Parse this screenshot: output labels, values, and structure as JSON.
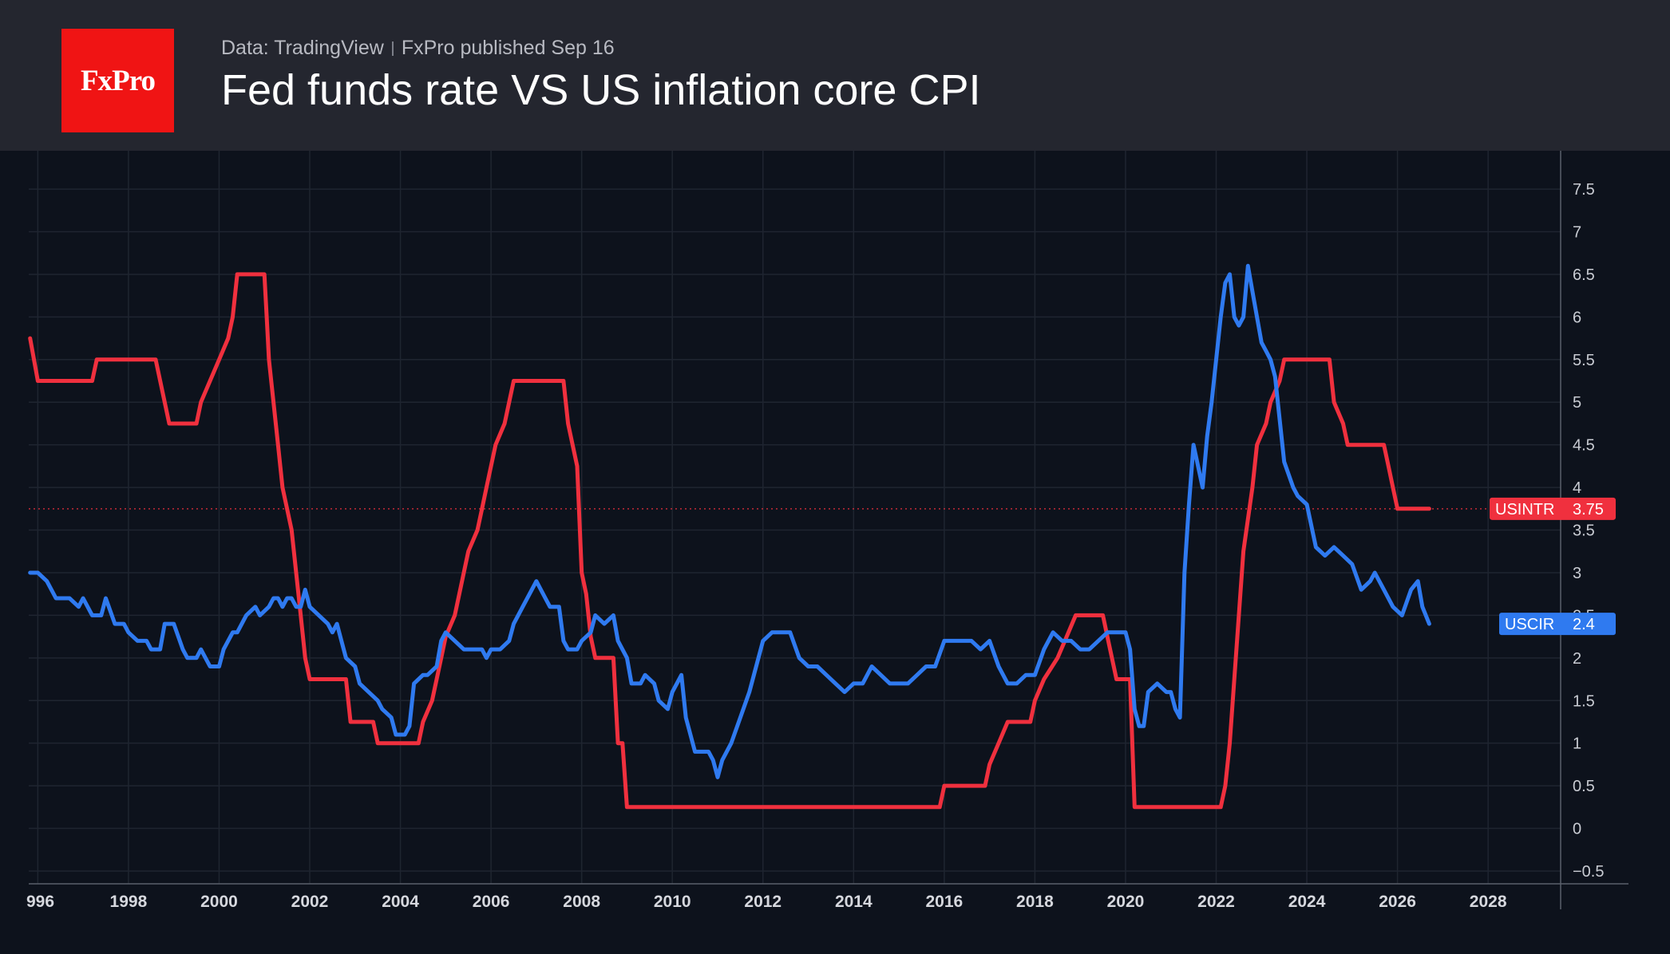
{
  "header": {
    "data_source": "Data: TradingView",
    "publisher": "FxPro published Sep 16",
    "title": "Fed funds rate VS US inflation core CPI",
    "logo_text": "FxPro"
  },
  "colors": {
    "header_bg": "#24262f",
    "chart_bg": "#0d121c",
    "logo_bg": "#f01414",
    "usintr": "#f0303e",
    "uscir": "#2f7af0"
  },
  "chart_data": {
    "type": "line",
    "title": "Fed funds rate VS US inflation core CPI",
    "xlabel": "",
    "ylabel": "",
    "xlim": [
      1995.8,
      2029.6
    ],
    "ylim": [
      -0.65,
      7.95
    ],
    "grid": true,
    "y_ticks": [
      "7.5",
      "7",
      "6.5",
      "6",
      "5.5",
      "5",
      "4.5",
      "4",
      "3.5",
      "3",
      "2.5",
      "2",
      "1.5",
      "1",
      "0.5",
      "0",
      "−0.5"
    ],
    "x_ticks": [
      "996",
      "1998",
      "2000",
      "2002",
      "2004",
      "2006",
      "2008",
      "2010",
      "2012",
      "2014",
      "2016",
      "2018",
      "2020",
      "2022",
      "2024",
      "2026",
      "2028"
    ],
    "series": [
      {
        "name": "USINTR",
        "last_value": "3.75",
        "color": "#f0303e",
        "points": [
          [
            1995.83,
            5.75
          ],
          [
            1996.0,
            5.25
          ],
          [
            1997.2,
            5.25
          ],
          [
            1997.3,
            5.5
          ],
          [
            1998.6,
            5.5
          ],
          [
            1998.8,
            5.0
          ],
          [
            1998.9,
            4.75
          ],
          [
            1999.5,
            4.75
          ],
          [
            1999.6,
            5.0
          ],
          [
            1999.8,
            5.25
          ],
          [
            2000.0,
            5.5
          ],
          [
            2000.2,
            5.75
          ],
          [
            2000.3,
            6.0
          ],
          [
            2000.4,
            6.5
          ],
          [
            2001.0,
            6.5
          ],
          [
            2001.05,
            6.0
          ],
          [
            2001.1,
            5.5
          ],
          [
            2001.2,
            5.0
          ],
          [
            2001.3,
            4.5
          ],
          [
            2001.4,
            4.0
          ],
          [
            2001.6,
            3.5
          ],
          [
            2001.7,
            3.0
          ],
          [
            2001.8,
            2.5
          ],
          [
            2001.9,
            2.0
          ],
          [
            2002.0,
            1.75
          ],
          [
            2002.8,
            1.75
          ],
          [
            2002.9,
            1.25
          ],
          [
            2003.4,
            1.25
          ],
          [
            2003.5,
            1.0
          ],
          [
            2004.4,
            1.0
          ],
          [
            2004.5,
            1.25
          ],
          [
            2004.7,
            1.5
          ],
          [
            2004.9,
            2.0
          ],
          [
            2005.0,
            2.25
          ],
          [
            2005.2,
            2.5
          ],
          [
            2005.4,
            3.0
          ],
          [
            2005.5,
            3.25
          ],
          [
            2005.7,
            3.5
          ],
          [
            2005.8,
            3.75
          ],
          [
            2005.9,
            4.0
          ],
          [
            2006.0,
            4.25
          ],
          [
            2006.1,
            4.5
          ],
          [
            2006.3,
            4.75
          ],
          [
            2006.4,
            5.0
          ],
          [
            2006.5,
            5.25
          ],
          [
            2007.6,
            5.25
          ],
          [
            2007.7,
            4.75
          ],
          [
            2007.8,
            4.5
          ],
          [
            2007.9,
            4.25
          ],
          [
            2008.0,
            3.0
          ],
          [
            2008.1,
            2.75
          ],
          [
            2008.2,
            2.25
          ],
          [
            2008.3,
            2.0
          ],
          [
            2008.7,
            2.0
          ],
          [
            2008.8,
            1.0
          ],
          [
            2008.9,
            1.0
          ],
          [
            2009.0,
            0.25
          ],
          [
            2015.9,
            0.25
          ],
          [
            2016.0,
            0.5
          ],
          [
            2016.9,
            0.5
          ],
          [
            2017.0,
            0.75
          ],
          [
            2017.2,
            1.0
          ],
          [
            2017.4,
            1.25
          ],
          [
            2017.9,
            1.25
          ],
          [
            2018.0,
            1.5
          ],
          [
            2018.2,
            1.75
          ],
          [
            2018.5,
            2.0
          ],
          [
            2018.7,
            2.25
          ],
          [
            2018.9,
            2.5
          ],
          [
            2019.5,
            2.5
          ],
          [
            2019.6,
            2.25
          ],
          [
            2019.7,
            2.0
          ],
          [
            2019.8,
            1.75
          ],
          [
            2020.1,
            1.75
          ],
          [
            2020.2,
            0.25
          ],
          [
            2022.1,
            0.25
          ],
          [
            2022.2,
            0.5
          ],
          [
            2022.3,
            1.0
          ],
          [
            2022.4,
            1.75
          ],
          [
            2022.5,
            2.5
          ],
          [
            2022.6,
            3.25
          ],
          [
            2022.8,
            4.0
          ],
          [
            2022.9,
            4.5
          ],
          [
            2023.1,
            4.75
          ],
          [
            2023.2,
            5.0
          ],
          [
            2023.4,
            5.25
          ],
          [
            2023.5,
            5.5
          ],
          [
            2024.5,
            5.5
          ],
          [
            2024.6,
            5.0
          ],
          [
            2024.8,
            4.75
          ],
          [
            2024.9,
            4.5
          ],
          [
            2025.7,
            4.5
          ],
          [
            2025.8,
            4.25
          ],
          [
            2025.9,
            4.0
          ],
          [
            2026.0,
            3.75
          ],
          [
            2026.7,
            3.75
          ]
        ]
      },
      {
        "name": "USCIR",
        "last_value": "2.4",
        "color": "#2f7af0",
        "points": [
          [
            1995.83,
            3.0
          ],
          [
            1996.0,
            3.0
          ],
          [
            1996.2,
            2.9
          ],
          [
            1996.4,
            2.7
          ],
          [
            1996.7,
            2.7
          ],
          [
            1996.9,
            2.6
          ],
          [
            1997.0,
            2.7
          ],
          [
            1997.2,
            2.5
          ],
          [
            1997.4,
            2.5
          ],
          [
            1997.5,
            2.7
          ],
          [
            1997.7,
            2.4
          ],
          [
            1997.9,
            2.4
          ],
          [
            1998.0,
            2.3
          ],
          [
            1998.2,
            2.2
          ],
          [
            1998.4,
            2.2
          ],
          [
            1998.5,
            2.1
          ],
          [
            1998.7,
            2.1
          ],
          [
            1998.8,
            2.4
          ],
          [
            1999.0,
            2.4
          ],
          [
            1999.2,
            2.1
          ],
          [
            1999.3,
            2.0
          ],
          [
            1999.5,
            2.0
          ],
          [
            1999.6,
            2.1
          ],
          [
            1999.8,
            1.9
          ],
          [
            2000.0,
            1.9
          ],
          [
            2000.1,
            2.1
          ],
          [
            2000.3,
            2.3
          ],
          [
            2000.4,
            2.3
          ],
          [
            2000.6,
            2.5
          ],
          [
            2000.8,
            2.6
          ],
          [
            2000.9,
            2.5
          ],
          [
            2001.1,
            2.6
          ],
          [
            2001.2,
            2.7
          ],
          [
            2001.3,
            2.7
          ],
          [
            2001.4,
            2.6
          ],
          [
            2001.5,
            2.7
          ],
          [
            2001.6,
            2.7
          ],
          [
            2001.7,
            2.6
          ],
          [
            2001.8,
            2.6
          ],
          [
            2001.9,
            2.8
          ],
          [
            2002.0,
            2.6
          ],
          [
            2002.2,
            2.5
          ],
          [
            2002.4,
            2.4
          ],
          [
            2002.5,
            2.3
          ],
          [
            2002.6,
            2.4
          ],
          [
            2002.7,
            2.2
          ],
          [
            2002.8,
            2.0
          ],
          [
            2003.0,
            1.9
          ],
          [
            2003.1,
            1.7
          ],
          [
            2003.3,
            1.6
          ],
          [
            2003.5,
            1.5
          ],
          [
            2003.6,
            1.4
          ],
          [
            2003.8,
            1.3
          ],
          [
            2003.9,
            1.1
          ],
          [
            2004.1,
            1.1
          ],
          [
            2004.2,
            1.2
          ],
          [
            2004.3,
            1.7
          ],
          [
            2004.5,
            1.8
          ],
          [
            2004.6,
            1.8
          ],
          [
            2004.8,
            1.9
          ],
          [
            2004.9,
            2.2
          ],
          [
            2005.0,
            2.3
          ],
          [
            2005.2,
            2.2
          ],
          [
            2005.4,
            2.1
          ],
          [
            2005.6,
            2.1
          ],
          [
            2005.8,
            2.1
          ],
          [
            2005.9,
            2.0
          ],
          [
            2006.0,
            2.1
          ],
          [
            2006.2,
            2.1
          ],
          [
            2006.4,
            2.2
          ],
          [
            2006.5,
            2.4
          ],
          [
            2006.7,
            2.6
          ],
          [
            2006.9,
            2.8
          ],
          [
            2007.0,
            2.9
          ],
          [
            2007.2,
            2.7
          ],
          [
            2007.3,
            2.6
          ],
          [
            2007.5,
            2.6
          ],
          [
            2007.6,
            2.2
          ],
          [
            2007.7,
            2.1
          ],
          [
            2007.9,
            2.1
          ],
          [
            2008.0,
            2.2
          ],
          [
            2008.2,
            2.3
          ],
          [
            2008.3,
            2.5
          ],
          [
            2008.5,
            2.4
          ],
          [
            2008.7,
            2.5
          ],
          [
            2008.8,
            2.2
          ],
          [
            2009.0,
            2.0
          ],
          [
            2009.1,
            1.7
          ],
          [
            2009.3,
            1.7
          ],
          [
            2009.4,
            1.8
          ],
          [
            2009.6,
            1.7
          ],
          [
            2009.7,
            1.5
          ],
          [
            2009.9,
            1.4
          ],
          [
            2010.0,
            1.6
          ],
          [
            2010.1,
            1.7
          ],
          [
            2010.2,
            1.8
          ],
          [
            2010.3,
            1.3
          ],
          [
            2010.5,
            0.9
          ],
          [
            2010.8,
            0.9
          ],
          [
            2010.9,
            0.8
          ],
          [
            2011.0,
            0.6
          ],
          [
            2011.1,
            0.8
          ],
          [
            2011.3,
            1.0
          ],
          [
            2011.5,
            1.3
          ],
          [
            2011.7,
            1.6
          ],
          [
            2011.8,
            1.8
          ],
          [
            2012.0,
            2.2
          ],
          [
            2012.2,
            2.3
          ],
          [
            2012.4,
            2.3
          ],
          [
            2012.6,
            2.3
          ],
          [
            2012.8,
            2.0
          ],
          [
            2013.0,
            1.9
          ],
          [
            2013.2,
            1.9
          ],
          [
            2013.4,
            1.8
          ],
          [
            2013.6,
            1.7
          ],
          [
            2013.8,
            1.6
          ],
          [
            2014.0,
            1.7
          ],
          [
            2014.2,
            1.7
          ],
          [
            2014.4,
            1.9
          ],
          [
            2014.6,
            1.8
          ],
          [
            2014.8,
            1.7
          ],
          [
            2015.0,
            1.7
          ],
          [
            2015.2,
            1.7
          ],
          [
            2015.4,
            1.8
          ],
          [
            2015.6,
            1.9
          ],
          [
            2015.8,
            1.9
          ],
          [
            2016.0,
            2.2
          ],
          [
            2016.2,
            2.2
          ],
          [
            2016.4,
            2.2
          ],
          [
            2016.6,
            2.2
          ],
          [
            2016.8,
            2.1
          ],
          [
            2017.0,
            2.2
          ],
          [
            2017.2,
            1.9
          ],
          [
            2017.4,
            1.7
          ],
          [
            2017.6,
            1.7
          ],
          [
            2017.8,
            1.8
          ],
          [
            2018.0,
            1.8
          ],
          [
            2018.2,
            2.1
          ],
          [
            2018.4,
            2.3
          ],
          [
            2018.6,
            2.2
          ],
          [
            2018.8,
            2.2
          ],
          [
            2019.0,
            2.1
          ],
          [
            2019.2,
            2.1
          ],
          [
            2019.4,
            2.2
          ],
          [
            2019.6,
            2.3
          ],
          [
            2019.8,
            2.3
          ],
          [
            2020.0,
            2.3
          ],
          [
            2020.1,
            2.1
          ],
          [
            2020.2,
            1.4
          ],
          [
            2020.3,
            1.2
          ],
          [
            2020.4,
            1.2
          ],
          [
            2020.5,
            1.6
          ],
          [
            2020.7,
            1.7
          ],
          [
            2020.9,
            1.6
          ],
          [
            2021.0,
            1.6
          ],
          [
            2021.1,
            1.4
          ],
          [
            2021.2,
            1.3
          ],
          [
            2021.3,
            3.0
          ],
          [
            2021.4,
            3.8
          ],
          [
            2021.5,
            4.5
          ],
          [
            2021.7,
            4.0
          ],
          [
            2021.8,
            4.6
          ],
          [
            2021.9,
            5.0
          ],
          [
            2022.0,
            5.5
          ],
          [
            2022.1,
            6.0
          ],
          [
            2022.2,
            6.4
          ],
          [
            2022.3,
            6.5
          ],
          [
            2022.4,
            6.0
          ],
          [
            2022.5,
            5.9
          ],
          [
            2022.6,
            6.0
          ],
          [
            2022.7,
            6.6
          ],
          [
            2022.8,
            6.3
          ],
          [
            2022.9,
            6.0
          ],
          [
            2023.0,
            5.7
          ],
          [
            2023.1,
            5.6
          ],
          [
            2023.2,
            5.5
          ],
          [
            2023.3,
            5.3
          ],
          [
            2023.4,
            4.8
          ],
          [
            2023.5,
            4.3
          ],
          [
            2023.7,
            4.0
          ],
          [
            2023.8,
            3.9
          ],
          [
            2024.0,
            3.8
          ],
          [
            2024.2,
            3.3
          ],
          [
            2024.4,
            3.2
          ],
          [
            2024.6,
            3.3
          ],
          [
            2024.8,
            3.2
          ],
          [
            2025.0,
            3.1
          ],
          [
            2025.2,
            2.8
          ],
          [
            2025.4,
            2.9
          ],
          [
            2025.5,
            3.0
          ],
          [
            2025.7,
            2.8
          ],
          [
            2025.9,
            2.6
          ],
          [
            2026.1,
            2.5
          ],
          [
            2026.3,
            2.8
          ],
          [
            2026.45,
            2.9
          ],
          [
            2026.55,
            2.6
          ],
          [
            2026.7,
            2.4
          ]
        ]
      }
    ]
  }
}
